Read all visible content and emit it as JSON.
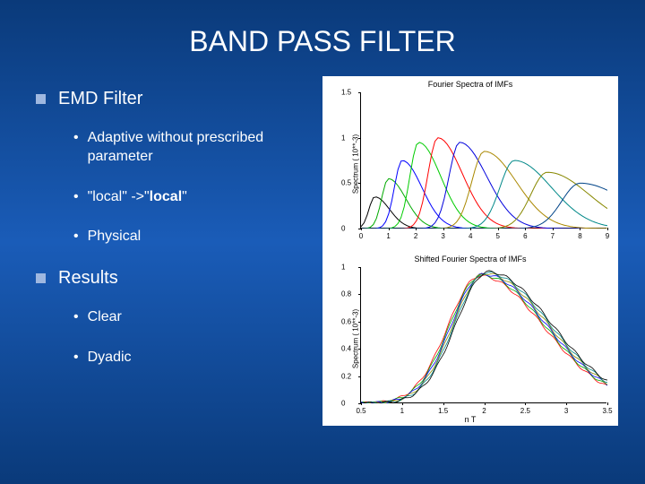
{
  "title": "BAND PASS FILTER",
  "sections": [
    {
      "header": "EMD Filter",
      "items": [
        {
          "text": "Adaptive without prescribed parameter"
        },
        {
          "prefix": "\"local\" ->\"",
          "bold": "local",
          "suffix": "\""
        },
        {
          "text": "Physical"
        }
      ]
    },
    {
      "header": "Results",
      "items": [
        {
          "text": "Clear"
        },
        {
          "text": "Dyadic"
        }
      ]
    }
  ],
  "chart_top": {
    "title": "Fourier Spectra of IMFs",
    "ylabel": "Spectrum ( 10**-3)",
    "xlabel": "",
    "xlim": [
      0,
      9
    ],
    "ylim": [
      0,
      1.5
    ],
    "xticks": [
      0,
      1,
      2,
      3,
      4,
      5,
      6,
      7,
      8,
      9
    ],
    "yticks": [
      0,
      0.5,
      1,
      1.5
    ],
    "background_color": "#ffffff",
    "series": [
      {
        "color": "#000000",
        "peak_x": 0.5,
        "peak_y": 0.35,
        "width": 0.6
      },
      {
        "color": "#00aa00",
        "peak_x": 1.0,
        "peak_y": 0.55,
        "width": 0.7
      },
      {
        "color": "#0000ff",
        "peak_x": 1.5,
        "peak_y": 0.75,
        "width": 0.8
      },
      {
        "color": "#00cc00",
        "peak_x": 2.1,
        "peak_y": 0.95,
        "width": 0.9
      },
      {
        "color": "#ff0000",
        "peak_x": 2.8,
        "peak_y": 1.0,
        "width": 1.0
      },
      {
        "color": "#0000dd",
        "peak_x": 3.6,
        "peak_y": 0.95,
        "width": 1.1
      },
      {
        "color": "#aa8800",
        "peak_x": 4.5,
        "peak_y": 0.85,
        "width": 1.3
      },
      {
        "color": "#008888",
        "peak_x": 5.6,
        "peak_y": 0.75,
        "width": 1.5
      },
      {
        "color": "#888800",
        "peak_x": 6.8,
        "peak_y": 0.62,
        "width": 1.7
      },
      {
        "color": "#004488",
        "peak_x": 8.0,
        "peak_y": 0.5,
        "width": 1.9
      }
    ]
  },
  "chart_bottom": {
    "title": "Shifted Fourier Spectra of IMFs",
    "ylabel": "Spectrum ( 10**-3)",
    "xlabel": "n T",
    "xlim": [
      0.5,
      3.5
    ],
    "ylim": [
      0,
      1
    ],
    "xticks": [
      0.5,
      1,
      1.5,
      2,
      2.5,
      3,
      3.5
    ],
    "yticks": [
      0,
      0.2,
      0.4,
      0.6,
      0.8,
      1
    ],
    "background_color": "#ffffff",
    "overlay_colors": [
      "#ff0000",
      "#00aa00",
      "#0000ff",
      "#888800",
      "#008888",
      "#000000"
    ],
    "peak_x": 2.0,
    "peak_y": 0.95,
    "width": 1.4
  }
}
